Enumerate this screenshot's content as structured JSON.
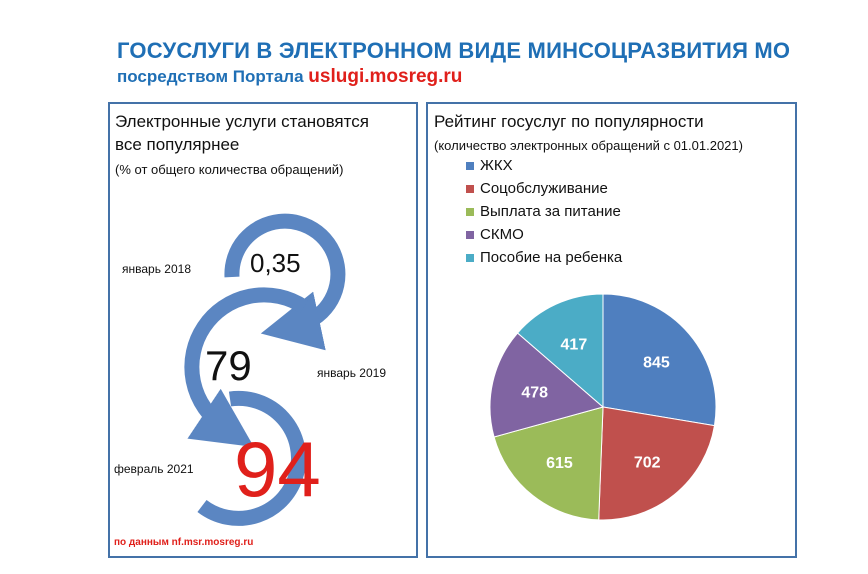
{
  "header": {
    "title": "ГОСУСЛУГИ В ЭЛЕКТРОННОМ ВИДЕ МИНСОЦРАЗВИТИЯ МО",
    "subtitle_prefix": "посредством Портала ",
    "subtitle_url": "uslugi.mosreg.ru"
  },
  "left_panel": {
    "title_line1": "Электронные услуги становятся",
    "title_line2": "все популярнее",
    "note": "(% от общего количества обращений)",
    "steps": [
      {
        "label": "январь 2018",
        "value": "0,35"
      },
      {
        "label": "январь 2019",
        "value": "79"
      },
      {
        "label": "февраль 2021",
        "value": "94"
      }
    ],
    "source": "по данным nf.msr.mosreg.ru",
    "colors": {
      "arrow": "#5b86c2",
      "highlight": "#e0201b"
    }
  },
  "chart_data": [
    {
      "type": "line",
      "x": [
        "январь 2018",
        "январь 2019",
        "февраль 2021"
      ],
      "series": [
        {
          "values": [
            0.35,
            79,
            94
          ]
        }
      ],
      "title": "Электронные услуги становятся все популярнее",
      "subtitle": "(% от общего количества обращений)"
    },
    {
      "type": "pie",
      "title": "Рейтинг госуслуг по популярности",
      "subtitle": "(количество электронных обращений с 01.01.2021)",
      "categories": [
        "ЖКХ",
        "Соцобслуживание",
        "Выплата за питание",
        "СКМО",
        "Пособие на ребенка"
      ],
      "values": [
        845,
        702,
        615,
        478,
        417
      ],
      "colors": [
        "#4f7fbf",
        "#c0504d",
        "#9bbb59",
        "#8064a2",
        "#4bacc6"
      ],
      "legend": "top-left"
    }
  ]
}
